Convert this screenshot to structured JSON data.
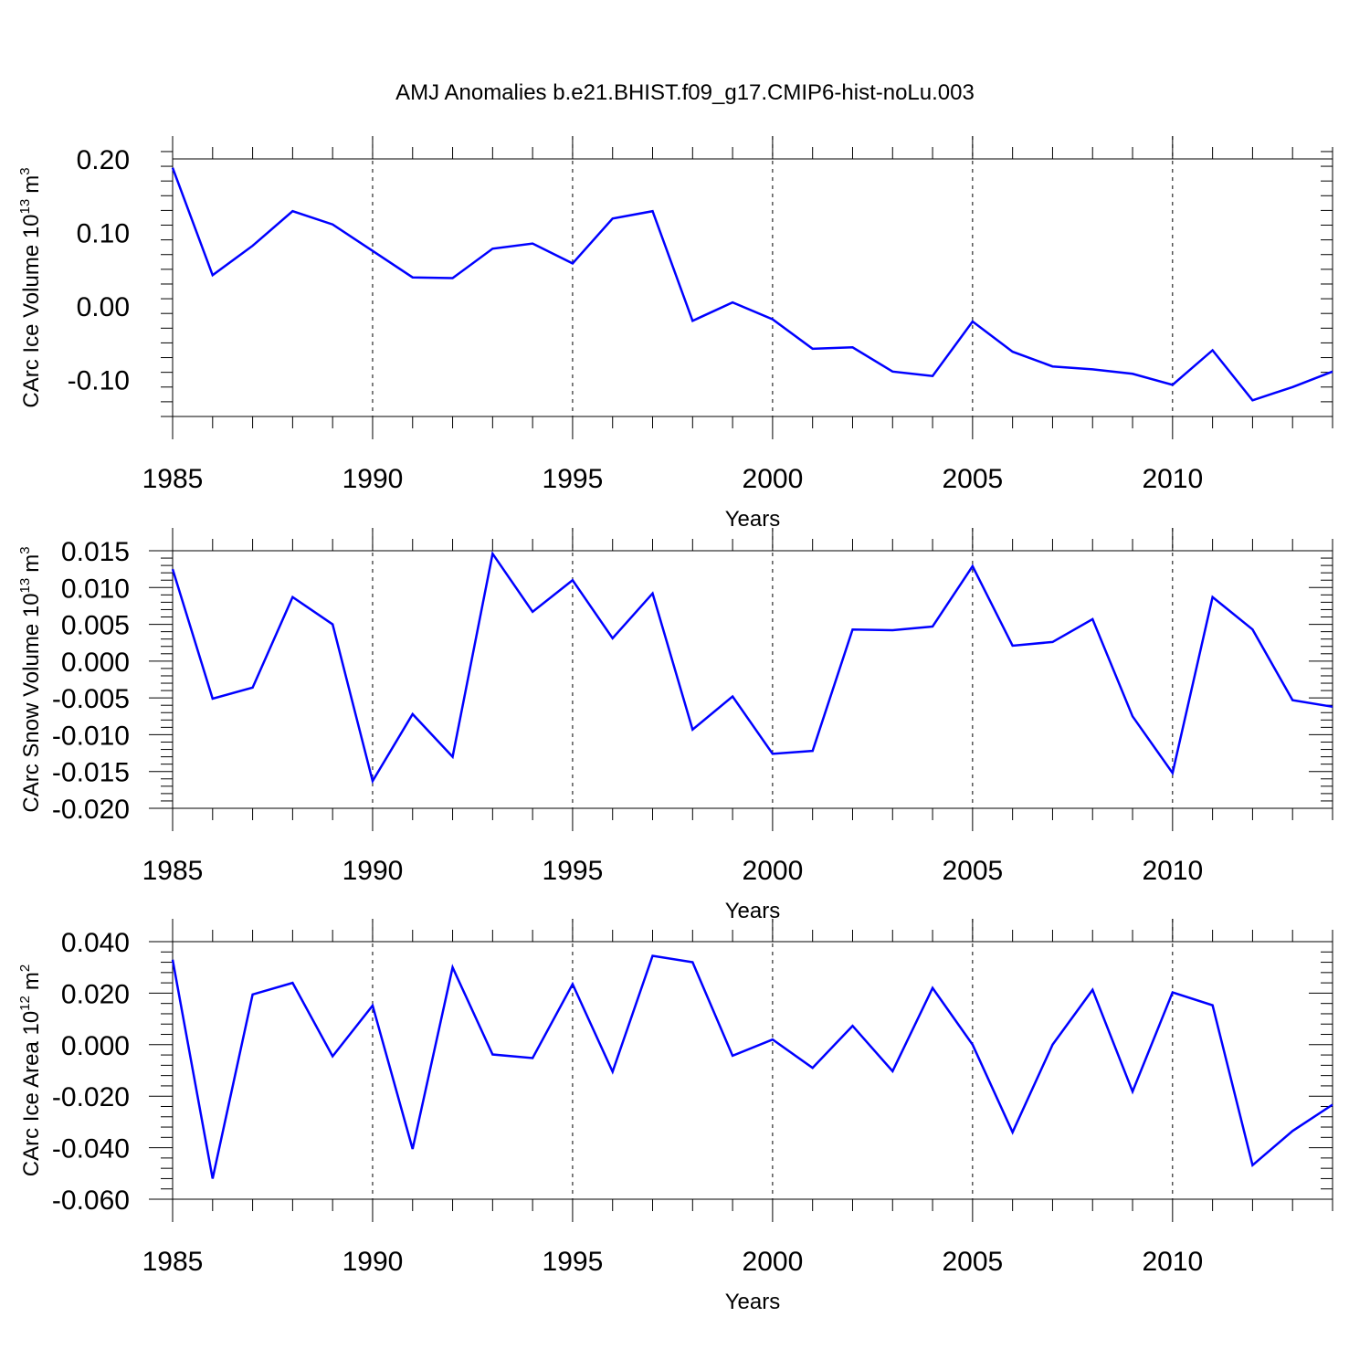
{
  "title": "AMJ Anomalies b.e21.BHIST.f09_g17.CMIP6-hist-noLu.003",
  "colors": {
    "series": "#0000ff",
    "axes": "#000000"
  },
  "chart_data": [
    {
      "type": "line",
      "ylabel_main": "CArc Ice Volume 10",
      "ylabel_exp": "13",
      "ylabel_unit": "m",
      "ylabel_unit_exp": "3",
      "xlabel": "Years",
      "xlim": [
        1985,
        2014
      ],
      "ylim": [
        -0.15,
        0.2
      ],
      "x_ticks": [
        1985,
        1990,
        1995,
        2000,
        2005,
        2010
      ],
      "x_tick_labels": [
        "1985",
        "1990",
        "1995",
        "2000",
        "2005",
        "2010"
      ],
      "y_ticks": [
        0.2,
        0.1,
        0.0,
        -0.1
      ],
      "y_tick_labels": [
        "0.20",
        "0.10",
        "0.00",
        "-0.10"
      ],
      "grid_x": [
        1990,
        1995,
        2000,
        2005,
        2010
      ],
      "x": [
        1985,
        1986,
        1987,
        1988,
        1989,
        1990,
        1991,
        1992,
        1993,
        1994,
        1995,
        1996,
        1997,
        1998,
        1999,
        2000,
        2001,
        2002,
        2003,
        2004,
        2005,
        2006,
        2007,
        2008,
        2009,
        2010,
        2011,
        2012,
        2013,
        2014
      ],
      "series": [
        {
          "name": "CArc Ice Volume",
          "values": [
            0.188,
            0.042,
            0.082,
            0.129,
            0.111,
            0.075,
            0.039,
            0.038,
            0.078,
            0.085,
            0.058,
            0.119,
            0.129,
            -0.02,
            0.005,
            -0.018,
            -0.058,
            -0.056,
            -0.089,
            -0.095,
            -0.021,
            -0.062,
            -0.082,
            -0.086,
            -0.092,
            -0.107,
            -0.06,
            -0.128,
            -0.11,
            -0.089
          ]
        }
      ]
    },
    {
      "type": "line",
      "ylabel_main": "CArc Snow Volume 10",
      "ylabel_exp": "13",
      "ylabel_unit": "m",
      "ylabel_unit_exp": "3",
      "xlabel": "Years",
      "xlim": [
        1985,
        2014
      ],
      "ylim": [
        -0.02,
        0.015
      ],
      "x_ticks": [
        1985,
        1990,
        1995,
        2000,
        2005,
        2010
      ],
      "x_tick_labels": [
        "1985",
        "1990",
        "1995",
        "2000",
        "2005",
        "2010"
      ],
      "y_ticks": [
        0.015,
        0.01,
        0.005,
        0.0,
        -0.005,
        -0.01,
        -0.015,
        -0.02
      ],
      "y_tick_labels": [
        "0.015",
        "0.010",
        "0.005",
        "0.000",
        "-0.005",
        "-0.010",
        "-0.015",
        "-0.020"
      ],
      "grid_x": [
        1990,
        1995,
        2000,
        2005,
        2010
      ],
      "x": [
        1985,
        1986,
        1987,
        1988,
        1989,
        1990,
        1991,
        1992,
        1993,
        1994,
        1995,
        1996,
        1997,
        1998,
        1999,
        2000,
        2001,
        2002,
        2003,
        2004,
        2005,
        2006,
        2007,
        2008,
        2009,
        2010,
        2011,
        2012,
        2013,
        2014
      ],
      "series": [
        {
          "name": "CArc Snow Volume",
          "values": [
            0.0125,
            -0.0051,
            -0.0036,
            0.0087,
            0.005,
            -0.0163,
            -0.0072,
            -0.013,
            0.0146,
            0.0067,
            0.011,
            0.0031,
            0.0092,
            -0.0093,
            -0.0048,
            -0.0126,
            -0.0122,
            0.0043,
            0.0042,
            0.0047,
            0.0129,
            0.0021,
            0.0026,
            0.0057,
            -0.0075,
            -0.0152,
            0.0087,
            0.0043,
            -0.0053,
            -0.0062
          ]
        }
      ]
    },
    {
      "type": "line",
      "ylabel_main": "CArc Ice Area 10",
      "ylabel_exp": "12",
      "ylabel_unit": "m",
      "ylabel_unit_exp": "2",
      "xlabel": "Years",
      "xlim": [
        1985,
        2014
      ],
      "ylim": [
        -0.06,
        0.04
      ],
      "x_ticks": [
        1985,
        1990,
        1995,
        2000,
        2005,
        2010
      ],
      "x_tick_labels": [
        "1985",
        "1990",
        "1995",
        "2000",
        "2005",
        "2010"
      ],
      "y_ticks": [
        0.04,
        0.02,
        0.0,
        -0.02,
        -0.04,
        -0.06
      ],
      "y_tick_labels": [
        "0.040",
        "0.020",
        "0.000",
        "-0.020",
        "-0.040",
        "-0.060"
      ],
      "grid_x": [
        1990,
        1995,
        2000,
        2005,
        2010
      ],
      "x": [
        1985,
        1986,
        1987,
        1988,
        1989,
        1990,
        1991,
        1992,
        1993,
        1994,
        1995,
        1996,
        1997,
        1998,
        1999,
        2000,
        2001,
        2002,
        2003,
        2004,
        2005,
        2006,
        2007,
        2008,
        2009,
        2010,
        2011,
        2012,
        2013,
        2014
      ],
      "series": [
        {
          "name": "CArc Ice Area",
          "values": [
            0.033,
            -0.052,
            0.0195,
            0.024,
            -0.0045,
            0.0152,
            -0.0405,
            0.03,
            -0.0038,
            -0.0052,
            0.0235,
            -0.0105,
            0.0345,
            0.032,
            -0.0043,
            0.002,
            -0.009,
            0.0073,
            -0.0103,
            0.022,
            0.0,
            -0.034,
            0.0,
            0.0213,
            -0.0182,
            0.0203,
            0.0153,
            -0.0468,
            -0.0335,
            -0.0233
          ]
        }
      ]
    }
  ]
}
